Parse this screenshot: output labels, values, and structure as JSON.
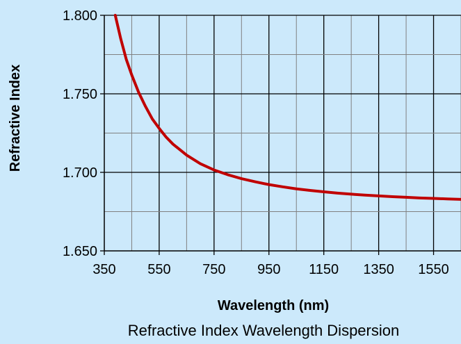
{
  "chart_data": {
    "type": "line",
    "title": "Refractive Index Wavelength Dispersion",
    "xlabel": "Wavelength (nm)",
    "ylabel": "Refractive Index",
    "xlim": [
      350,
      1650
    ],
    "ylim": [
      1.65,
      1.8
    ],
    "x_ticks": [
      350,
      550,
      750,
      950,
      1150,
      1350,
      1550
    ],
    "x_tick_labels": [
      "350",
      "550",
      "750",
      "950",
      "1150",
      "1350",
      "1550"
    ],
    "y_ticks": [
      1.65,
      1.7,
      1.75,
      1.8
    ],
    "y_tick_labels": [
      "1.650",
      "1.700",
      "1.750",
      "1.800"
    ],
    "grid": true,
    "series": [
      {
        "color": "#c00000",
        "x": [
          390,
          410,
          430,
          450,
          475,
          500,
          525,
          550,
          575,
          600,
          650,
          700,
          750,
          800,
          850,
          900,
          950,
          1000,
          1050,
          1100,
          1150,
          1200,
          1250,
          1300,
          1350,
          1400,
          1450,
          1500,
          1550,
          1600,
          1650
        ],
        "y": [
          1.8,
          1.785,
          1.772,
          1.762,
          1.751,
          1.742,
          1.734,
          1.728,
          1.7225,
          1.718,
          1.711,
          1.7055,
          1.7015,
          1.6985,
          1.696,
          1.694,
          1.6922,
          1.6908,
          1.6895,
          1.6885,
          1.6876,
          1.6868,
          1.6861,
          1.6855,
          1.685,
          1.6845,
          1.6841,
          1.6837,
          1.6834,
          1.6831,
          1.6828
        ]
      }
    ]
  }
}
